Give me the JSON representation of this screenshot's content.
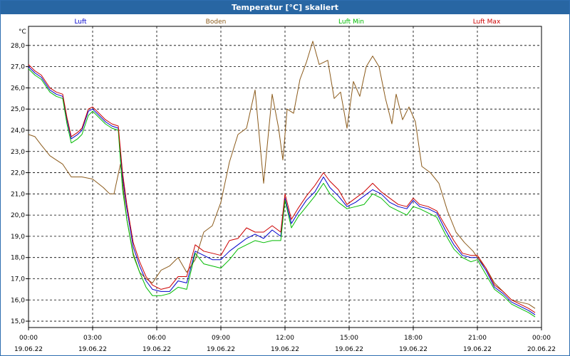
{
  "chart_data": {
    "type": "line",
    "title": "Temperatur [°C] skaliert",
    "ylabel": "°C",
    "xlabel": "",
    "ylim": [
      14.7,
      28.9
    ],
    "xlim": [
      0,
      24
    ],
    "grid": true,
    "legend_position": "top",
    "y_ticks": [
      "15,0",
      "16,0",
      "17,0",
      "18,0",
      "19,0",
      "20,0",
      "21,0",
      "22,0",
      "23,0",
      "24,0",
      "25,0",
      "26,0",
      "27,0",
      "28,0"
    ],
    "x_ticks": [
      {
        "time": "00:00",
        "date": "19.06.22"
      },
      {
        "time": "03:00",
        "date": "19.06.22"
      },
      {
        "time": "06:00",
        "date": "19.06.22"
      },
      {
        "time": "09:00",
        "date": "19.06.22"
      },
      {
        "time": "12:00",
        "date": "19.06.22"
      },
      {
        "time": "15:00",
        "date": "19.06.22"
      },
      {
        "time": "18:00",
        "date": "19.06.22"
      },
      {
        "time": "21:00",
        "date": "19.06.22"
      },
      {
        "time": "00:00",
        "date": "20.06.22"
      }
    ],
    "series": [
      {
        "name": "Luft",
        "color": "#0000cc",
        "x": [
          0,
          0.3,
          0.6,
          1.0,
          1.3,
          1.6,
          1.8,
          2.0,
          2.3,
          2.5,
          2.8,
          3.0,
          3.3,
          3.6,
          3.9,
          4.2,
          4.4,
          4.6,
          4.9,
          5.2,
          5.5,
          5.8,
          6.2,
          6.6,
          7.0,
          7.4,
          7.8,
          8.2,
          8.6,
          9.0,
          9.4,
          9.8,
          10.2,
          10.6,
          11.0,
          11.4,
          11.8,
          12.0,
          12.3,
          12.6,
          13.0,
          13.4,
          13.8,
          14.1,
          14.5,
          14.9,
          15.3,
          15.7,
          16.1,
          16.5,
          16.9,
          17.3,
          17.7,
          18.0,
          18.3,
          18.7,
          19.1,
          19.5,
          19.9,
          20.3,
          20.7,
          21.0,
          21.4,
          21.8,
          22.2,
          22.6,
          23.0,
          23.4,
          23.7
        ],
        "y": [
          27.0,
          26.7,
          26.5,
          25.9,
          25.7,
          25.6,
          24.5,
          23.6,
          23.8,
          24.0,
          24.9,
          25.0,
          24.7,
          24.4,
          24.2,
          24.1,
          21.8,
          20.3,
          18.5,
          17.6,
          16.9,
          16.5,
          16.4,
          16.4,
          16.9,
          16.8,
          18.3,
          18.1,
          17.9,
          17.9,
          18.3,
          18.6,
          18.9,
          19.1,
          18.9,
          19.3,
          19.0,
          20.8,
          19.6,
          20.1,
          20.7,
          21.1,
          21.8,
          21.3,
          20.9,
          20.4,
          20.6,
          20.9,
          21.2,
          21.0,
          20.6,
          20.4,
          20.3,
          20.7,
          20.4,
          20.3,
          20.1,
          19.3,
          18.6,
          18.1,
          18.0,
          18.0,
          17.4,
          16.6,
          16.3,
          15.9,
          15.7,
          15.5,
          15.3
        ]
      },
      {
        "name": "Boden",
        "color": "#8b5a1a",
        "x": [
          0,
          0.3,
          0.6,
          1.0,
          1.3,
          1.6,
          1.8,
          2.0,
          2.5,
          3.0,
          3.5,
          3.8,
          4.0,
          4.3,
          4.6,
          4.9,
          5.2,
          5.5,
          5.8,
          6.2,
          6.6,
          7.0,
          7.4,
          7.8,
          8.2,
          8.6,
          9.0,
          9.4,
          9.8,
          10.2,
          10.6,
          11.0,
          11.4,
          11.7,
          11.9,
          12.1,
          12.4,
          12.7,
          13.0,
          13.3,
          13.6,
          14.0,
          14.3,
          14.6,
          14.9,
          15.2,
          15.5,
          15.8,
          16.1,
          16.4,
          16.7,
          17.0,
          17.2,
          17.5,
          17.8,
          18.1,
          18.4,
          18.8,
          19.2,
          19.6,
          20.0,
          20.4,
          20.8,
          21.0,
          21.4,
          21.8,
          22.2,
          22.6,
          23.0,
          23.4,
          23.7
        ],
        "y": [
          23.8,
          23.7,
          23.3,
          22.8,
          22.6,
          22.4,
          22.1,
          21.8,
          21.8,
          21.7,
          21.3,
          21.0,
          21.0,
          22.4,
          19.8,
          18.2,
          17.3,
          17.0,
          16.8,
          17.4,
          17.6,
          18.0,
          17.3,
          17.9,
          19.2,
          19.5,
          20.6,
          22.5,
          23.8,
          24.1,
          25.9,
          21.5,
          25.7,
          24.1,
          22.6,
          25.0,
          24.8,
          26.4,
          27.2,
          28.2,
          27.1,
          27.3,
          25.5,
          25.8,
          24.1,
          26.3,
          25.6,
          27.0,
          27.5,
          27.0,
          25.5,
          24.3,
          25.7,
          24.5,
          25.1,
          24.4,
          22.3,
          22.0,
          21.5,
          20.2,
          19.2,
          18.7,
          18.3,
          18.0,
          17.5,
          16.8,
          16.4,
          16.0,
          15.9,
          15.8,
          15.6
        ]
      },
      {
        "name": "Luft Min",
        "color": "#00bb00",
        "x": [
          0,
          0.3,
          0.6,
          1.0,
          1.3,
          1.6,
          1.8,
          2.0,
          2.3,
          2.5,
          2.8,
          3.0,
          3.3,
          3.6,
          3.9,
          4.2,
          4.4,
          4.6,
          4.9,
          5.2,
          5.5,
          5.8,
          6.2,
          6.6,
          7.0,
          7.4,
          7.8,
          8.2,
          8.6,
          9.0,
          9.4,
          9.8,
          10.2,
          10.6,
          11.0,
          11.4,
          11.8,
          12.0,
          12.3,
          12.6,
          13.0,
          13.4,
          13.8,
          14.1,
          14.5,
          14.9,
          15.3,
          15.7,
          16.1,
          16.5,
          16.9,
          17.3,
          17.7,
          18.0,
          18.3,
          18.7,
          19.1,
          19.5,
          19.9,
          20.3,
          20.7,
          21.0,
          21.4,
          21.8,
          22.2,
          22.6,
          23.0,
          23.4,
          23.7
        ],
        "y": [
          26.9,
          26.6,
          26.4,
          25.8,
          25.6,
          25.5,
          24.3,
          23.4,
          23.6,
          23.8,
          24.7,
          24.9,
          24.6,
          24.3,
          24.1,
          24.0,
          21.2,
          19.8,
          18.1,
          17.3,
          16.6,
          16.2,
          16.2,
          16.3,
          16.6,
          16.5,
          18.2,
          17.7,
          17.6,
          17.5,
          17.9,
          18.4,
          18.6,
          18.8,
          18.7,
          18.8,
          18.8,
          20.7,
          19.4,
          19.9,
          20.4,
          20.9,
          21.5,
          21.0,
          20.6,
          20.3,
          20.4,
          20.5,
          21.0,
          20.8,
          20.4,
          20.2,
          20.0,
          20.4,
          20.3,
          20.1,
          19.9,
          19.1,
          18.4,
          18.0,
          17.8,
          17.9,
          17.2,
          16.5,
          16.2,
          15.8,
          15.6,
          15.4,
          15.2
        ]
      },
      {
        "name": "Luft Max",
        "color": "#cc0000",
        "x": [
          0,
          0.3,
          0.6,
          1.0,
          1.3,
          1.6,
          1.8,
          2.0,
          2.3,
          2.5,
          2.8,
          3.0,
          3.3,
          3.6,
          3.9,
          4.2,
          4.4,
          4.6,
          4.9,
          5.2,
          5.5,
          5.8,
          6.2,
          6.6,
          7.0,
          7.4,
          7.8,
          8.2,
          8.6,
          9.0,
          9.4,
          9.8,
          10.2,
          10.6,
          11.0,
          11.4,
          11.8,
          12.0,
          12.3,
          12.6,
          13.0,
          13.4,
          13.8,
          14.1,
          14.5,
          14.9,
          15.3,
          15.7,
          16.1,
          16.5,
          16.9,
          17.3,
          17.7,
          18.0,
          18.3,
          18.7,
          19.1,
          19.5,
          19.9,
          20.3,
          20.7,
          21.0,
          21.4,
          21.8,
          22.2,
          22.6,
          23.0,
          23.4,
          23.7
        ],
        "y": [
          27.1,
          26.8,
          26.6,
          26.0,
          25.8,
          25.7,
          24.6,
          23.7,
          23.9,
          24.1,
          25.0,
          25.1,
          24.8,
          24.5,
          24.3,
          24.2,
          22.0,
          20.5,
          18.7,
          17.8,
          17.1,
          16.7,
          16.5,
          16.6,
          17.1,
          17.1,
          18.6,
          18.3,
          18.2,
          18.1,
          18.8,
          18.9,
          19.4,
          19.2,
          19.2,
          19.5,
          19.2,
          21.0,
          19.8,
          20.3,
          20.9,
          21.4,
          22.0,
          21.6,
          21.2,
          20.5,
          20.8,
          21.1,
          21.5,
          21.1,
          20.8,
          20.5,
          20.4,
          20.8,
          20.5,
          20.4,
          20.2,
          19.5,
          18.8,
          18.2,
          18.1,
          18.1,
          17.5,
          16.7,
          16.4,
          16.0,
          15.8,
          15.6,
          15.4
        ]
      }
    ]
  }
}
